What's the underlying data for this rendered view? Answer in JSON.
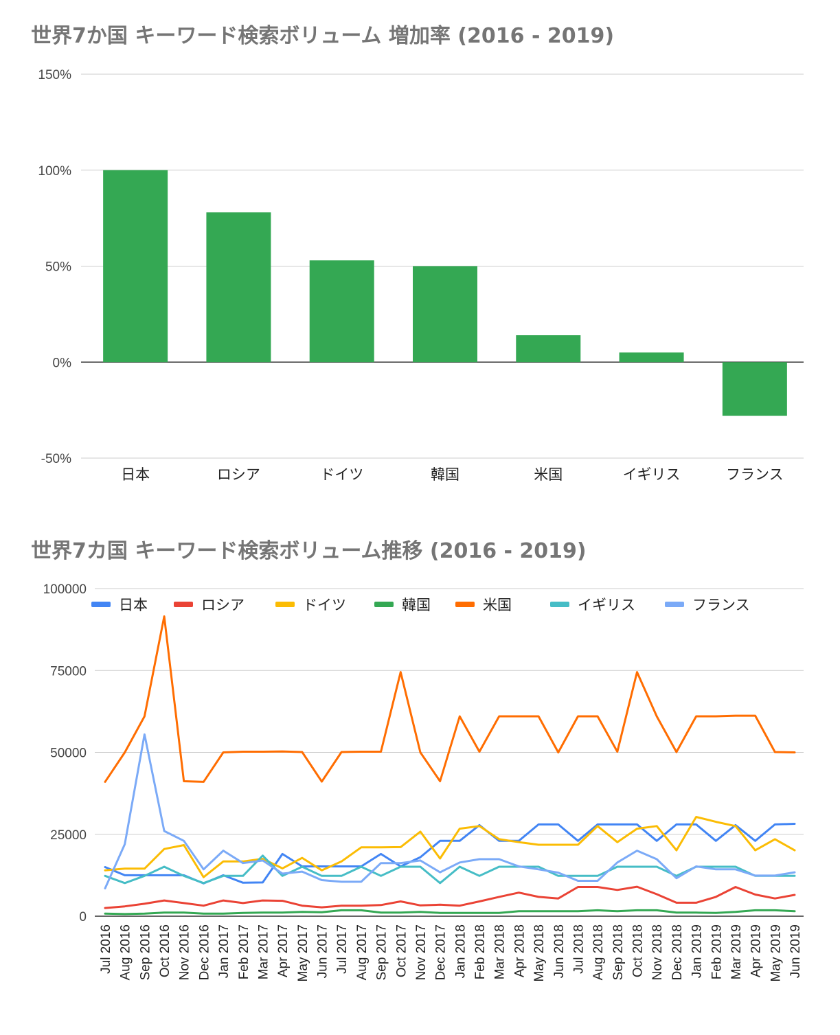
{
  "chart_data": [
    {
      "type": "bar",
      "title": "世界7か国 キーワード検索ボリューム 増加率 (2016 - 2019)",
      "categories": [
        "日本",
        "ロシア",
        "ドイツ",
        "韓国",
        "米国",
        "イギリス",
        "フランス"
      ],
      "values": [
        100,
        78,
        53,
        50,
        14,
        5,
        -28
      ],
      "yticks": [
        "150%",
        "100%",
        "50%",
        "0%",
        "-50%"
      ],
      "ylim": [
        -50,
        150
      ],
      "grid": true,
      "bar_color": "#34a853"
    },
    {
      "type": "line",
      "title": "世界7カ国 キーワード検索ボリューム推移 (2016 - 2019)",
      "x": [
        "Jul 2016",
        "Aug 2016",
        "Sep 2016",
        "Oct 2016",
        "Nov 2016",
        "Dec 2016",
        "Jan 2017",
        "Feb 2017",
        "Mar 2017",
        "Apr 2017",
        "May 2017",
        "Jun 2017",
        "Jul 2017",
        "Aug 2017",
        "Sep 2017",
        "Oct 2017",
        "Nov 2017",
        "Dec 2017",
        "Jan 2018",
        "Feb 2018",
        "Mar 2018",
        "Apr 2018",
        "May 2018",
        "Jun 2018",
        "Jul 2018",
        "Aug 2018",
        "Sep 2018",
        "Oct 2018",
        "Nov 2018",
        "Dec 2018",
        "Jan 2019",
        "Feb 2019",
        "Mar 2019",
        "Apr 2019",
        "May 2019",
        "Jun 2019"
      ],
      "yticks": [
        "100000",
        "75000",
        "50000",
        "25000",
        "0"
      ],
      "ylim": [
        0,
        100000
      ],
      "legend_position": "top",
      "grid": true,
      "series": [
        {
          "name": "日本",
          "color": "#4285f4",
          "values": [
            15000,
            12500,
            12500,
            12500,
            12500,
            10000,
            12500,
            10200,
            10300,
            19000,
            15200,
            15200,
            15200,
            15200,
            19000,
            15200,
            18000,
            23000,
            23000,
            27800,
            23000,
            23000,
            28000,
            28000,
            23000,
            28000,
            28000,
            28000,
            23000,
            28000,
            28000,
            23000,
            27800,
            23000,
            28000,
            28200
          ]
        },
        {
          "name": "ロシア",
          "color": "#ea4335",
          "values": [
            2500,
            3000,
            3800,
            4800,
            4000,
            3200,
            4800,
            4000,
            4800,
            4700,
            3200,
            2700,
            3200,
            3200,
            3400,
            4500,
            3300,
            3500,
            3200,
            4500,
            5900,
            7200,
            5900,
            5400,
            8900,
            8900,
            8000,
            9000,
            6700,
            4100,
            4100,
            5900,
            8900,
            6600,
            5400,
            6500
          ]
        },
        {
          "name": "ドイツ",
          "color": "#fbbc04",
          "values": [
            14000,
            14500,
            14500,
            20500,
            21700,
            11900,
            16700,
            16700,
            17500,
            14600,
            17800,
            14000,
            16700,
            21000,
            21000,
            21100,
            25800,
            17600,
            26700,
            27500,
            23500,
            22600,
            21800,
            21800,
            21800,
            27500,
            22600,
            26700,
            27500,
            20100,
            30300,
            28800,
            27500,
            20100,
            23500,
            20100
          ]
        },
        {
          "name": "韓国",
          "color": "#34a853",
          "values": [
            800,
            650,
            800,
            1100,
            1100,
            800,
            800,
            1000,
            1100,
            1100,
            1300,
            1200,
            1800,
            1800,
            1100,
            1100,
            1300,
            1000,
            1000,
            1000,
            1000,
            1500,
            1500,
            1500,
            1500,
            1800,
            1500,
            1800,
            1800,
            1100,
            1100,
            1000,
            1300,
            1800,
            1800,
            1500
          ]
        },
        {
          "name": "米国",
          "color": "#ff6d01",
          "values": [
            41000,
            50000,
            61000,
            91500,
            41200,
            41000,
            50000,
            50200,
            50200,
            50300,
            50100,
            41100,
            50100,
            50200,
            50200,
            74500,
            50000,
            41200,
            61000,
            50200,
            61000,
            61000,
            61000,
            50000,
            61000,
            61000,
            50200,
            74500,
            61000,
            50100,
            61000,
            61000,
            61200,
            61200,
            50100,
            50000
          ]
        },
        {
          "name": "イギリス",
          "color": "#46bdc6",
          "values": [
            12300,
            10100,
            12300,
            15100,
            12300,
            10100,
            12300,
            12300,
            18500,
            12300,
            15100,
            12300,
            12300,
            15100,
            12300,
            15100,
            15100,
            10100,
            15100,
            12300,
            15100,
            15100,
            15100,
            12300,
            12300,
            12300,
            15100,
            15100,
            15100,
            12300,
            15100,
            15100,
            15100,
            12300,
            12300,
            12300
          ]
        },
        {
          "name": "フランス",
          "color": "#7baaf7",
          "values": [
            8500,
            22000,
            55500,
            26000,
            23000,
            14300,
            20000,
            16200,
            17000,
            13000,
            13600,
            11000,
            10500,
            10500,
            16200,
            16200,
            17000,
            13400,
            16400,
            17400,
            17400,
            15200,
            14300,
            13300,
            10800,
            10800,
            16400,
            20000,
            17400,
            11600,
            15200,
            14300,
            14300,
            12400,
            12400,
            13400
          ]
        }
      ]
    }
  ]
}
